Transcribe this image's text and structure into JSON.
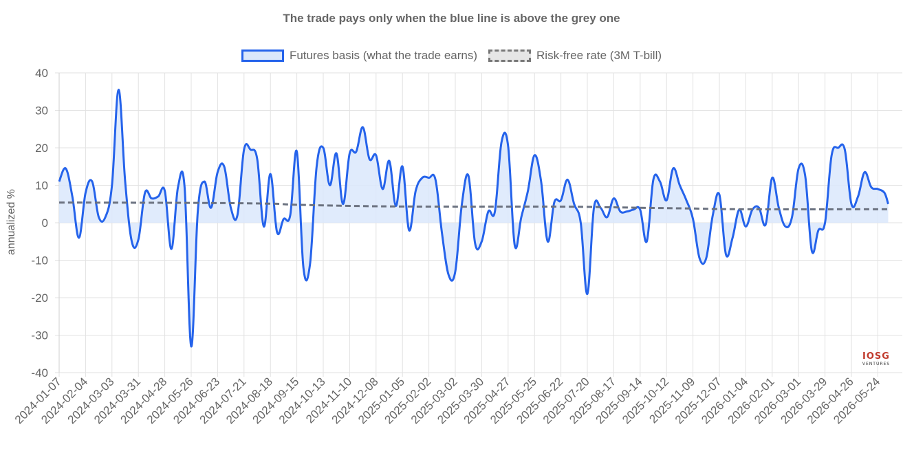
{
  "chart_data": {
    "type": "line",
    "title": "The trade pays only when the blue line is above the grey one",
    "ylabel": "annualized %",
    "xlabel": "",
    "ylim": [
      -40,
      40
    ],
    "yticks": [
      40,
      30,
      20,
      10,
      0,
      -10,
      -20,
      -30,
      -40
    ],
    "grid": true,
    "legend_placement": "top",
    "x_tick_labels": [
      "2024-01-07",
      "2024-02-04",
      "2024-03-03",
      "2024-03-31",
      "2024-04-28",
      "2024-05-26",
      "2024-06-23",
      "2024-07-21",
      "2024-08-18",
      "2024-09-15",
      "2024-10-13",
      "2024-11-10",
      "2024-12-08",
      "2025-01-05",
      "2025-02-02",
      "2025-03-02",
      "2025-03-30",
      "2025-04-27",
      "2025-05-25",
      "2025-06-22",
      "2025-07-20",
      "2025-08-17",
      "2025-09-14",
      "2025-10-12",
      "2025-11-09",
      "2025-12-07",
      "2026-01-04",
      "2026-02-01",
      "2026-03-01",
      "2026-03-29",
      "2026-04-26",
      "2026-05-24"
    ],
    "series": [
      {
        "name": "Futures basis (what the trade earns)",
        "color": "#2563eb",
        "fill": "#dbe7fb",
        "style": "solid",
        "points": [
          [
            "2024-01-07",
            11
          ],
          [
            "2024-01-14",
            14.5
          ],
          [
            "2024-01-21",
            7
          ],
          [
            "2024-01-28",
            -4
          ],
          [
            "2024-02-04",
            8
          ],
          [
            "2024-02-11",
            11
          ],
          [
            "2024-02-18",
            1.5
          ],
          [
            "2024-02-25",
            1.5
          ],
          [
            "2024-03-03",
            10
          ],
          [
            "2024-03-10",
            35.5
          ],
          [
            "2024-03-17",
            11
          ],
          [
            "2024-03-24",
            -5
          ],
          [
            "2024-03-31",
            -4.5
          ],
          [
            "2024-04-07",
            8
          ],
          [
            "2024-04-14",
            6.5
          ],
          [
            "2024-04-21",
            7
          ],
          [
            "2024-04-28",
            8.5
          ],
          [
            "2024-05-05",
            -7
          ],
          [
            "2024-05-12",
            9.5
          ],
          [
            "2024-05-19",
            9.5
          ],
          [
            "2024-05-26",
            -33
          ],
          [
            "2024-06-02",
            3
          ],
          [
            "2024-06-09",
            11
          ],
          [
            "2024-06-16",
            4
          ],
          [
            "2024-06-23",
            13.5
          ],
          [
            "2024-06-30",
            15
          ],
          [
            "2024-07-07",
            4
          ],
          [
            "2024-07-14",
            2
          ],
          [
            "2024-07-21",
            19.5
          ],
          [
            "2024-07-28",
            19.5
          ],
          [
            "2024-08-04",
            17
          ],
          [
            "2024-08-11",
            -1
          ],
          [
            "2024-08-18",
            13
          ],
          [
            "2024-08-25",
            -2.5
          ],
          [
            "2024-09-01",
            1
          ],
          [
            "2024-09-08",
            2
          ],
          [
            "2024-09-15",
            19
          ],
          [
            "2024-09-22",
            -12
          ],
          [
            "2024-09-29",
            -11
          ],
          [
            "2024-10-06",
            15
          ],
          [
            "2024-10-13",
            20
          ],
          [
            "2024-10-20",
            10
          ],
          [
            "2024-10-27",
            18.5
          ],
          [
            "2024-11-03",
            5
          ],
          [
            "2024-11-10",
            18.5
          ],
          [
            "2024-11-17",
            19
          ],
          [
            "2024-11-24",
            25.5
          ],
          [
            "2024-12-01",
            17
          ],
          [
            "2024-12-08",
            18
          ],
          [
            "2024-12-15",
            9
          ],
          [
            "2024-12-22",
            16.5
          ],
          [
            "2024-12-29",
            4.5
          ],
          [
            "2025-01-05",
            15
          ],
          [
            "2025-01-12",
            -2
          ],
          [
            "2025-01-19",
            8.5
          ],
          [
            "2025-01-26",
            12
          ],
          [
            "2025-02-02",
            12
          ],
          [
            "2025-02-09",
            11.5
          ],
          [
            "2025-02-16",
            -3
          ],
          [
            "2025-02-23",
            -14
          ],
          [
            "2025-03-02",
            -13
          ],
          [
            "2025-03-09",
            5
          ],
          [
            "2025-03-16",
            12.5
          ],
          [
            "2025-03-23",
            -5.5
          ],
          [
            "2025-03-30",
            -5
          ],
          [
            "2025-04-06",
            3
          ],
          [
            "2025-04-13",
            3
          ],
          [
            "2025-04-20",
            21.5
          ],
          [
            "2025-04-27",
            20.5
          ],
          [
            "2025-05-04",
            -6
          ],
          [
            "2025-05-11",
            1.5
          ],
          [
            "2025-05-18",
            8.5
          ],
          [
            "2025-05-25",
            18
          ],
          [
            "2025-06-01",
            11
          ],
          [
            "2025-06-08",
            -5
          ],
          [
            "2025-06-15",
            5.5
          ],
          [
            "2025-06-22",
            6
          ],
          [
            "2025-06-29",
            11.5
          ],
          [
            "2025-07-06",
            5
          ],
          [
            "2025-07-13",
            0
          ],
          [
            "2025-07-20",
            -19
          ],
          [
            "2025-07-27",
            4
          ],
          [
            "2025-08-03",
            4
          ],
          [
            "2025-08-10",
            1.5
          ],
          [
            "2025-08-17",
            6.5
          ],
          [
            "2025-08-24",
            3
          ],
          [
            "2025-08-31",
            3
          ],
          [
            "2025-09-07",
            3.5
          ],
          [
            "2025-09-14",
            3.5
          ],
          [
            "2025-09-21",
            -5
          ],
          [
            "2025-09-28",
            11.5
          ],
          [
            "2025-10-05",
            11
          ],
          [
            "2025-10-12",
            6
          ],
          [
            "2025-10-19",
            14.5
          ],
          [
            "2025-10-26",
            10
          ],
          [
            "2025-11-02",
            6
          ],
          [
            "2025-11-09",
            1
          ],
          [
            "2025-11-16",
            -9.5
          ],
          [
            "2025-11-23",
            -9.5
          ],
          [
            "2025-11-30",
            2
          ],
          [
            "2025-12-07",
            7.5
          ],
          [
            "2025-12-14",
            -8.5
          ],
          [
            "2025-12-21",
            -4
          ],
          [
            "2025-12-28",
            3.5
          ],
          [
            "2026-01-04",
            -1
          ],
          [
            "2026-01-11",
            3.5
          ],
          [
            "2026-01-18",
            4
          ],
          [
            "2026-01-25",
            -0.5
          ],
          [
            "2026-02-01",
            12
          ],
          [
            "2026-02-08",
            4
          ],
          [
            "2026-02-15",
            -1
          ],
          [
            "2026-02-22",
            1.5
          ],
          [
            "2026-03-01",
            14.5
          ],
          [
            "2026-03-08",
            12.5
          ],
          [
            "2026-03-15",
            -7.5
          ],
          [
            "2026-03-22",
            -2
          ],
          [
            "2026-03-29",
            0
          ],
          [
            "2026-04-05",
            18
          ],
          [
            "2026-04-12",
            20
          ],
          [
            "2026-04-19",
            19.5
          ],
          [
            "2026-04-26",
            5
          ],
          [
            "2026-05-03",
            7
          ],
          [
            "2026-05-10",
            13.5
          ],
          [
            "2026-05-17",
            9.5
          ],
          [
            "2026-05-24",
            9
          ],
          [
            "2026-05-31",
            8
          ],
          [
            "2026-06-04",
            5
          ]
        ]
      },
      {
        "name": "Risk-free rate (3M T-bill)",
        "color": "#6b7280",
        "style": "dashed",
        "points": [
          [
            "2024-01-07",
            5.4
          ],
          [
            "2024-05-26",
            5.3
          ],
          [
            "2024-08-18",
            5.1
          ],
          [
            "2024-09-15",
            4.8
          ],
          [
            "2024-12-08",
            4.4
          ],
          [
            "2025-03-02",
            4.3
          ],
          [
            "2025-06-22",
            4.3
          ],
          [
            "2025-09-14",
            4.0
          ],
          [
            "2025-11-09",
            3.8
          ],
          [
            "2026-01-04",
            3.6
          ],
          [
            "2026-06-04",
            3.6
          ]
        ]
      }
    ]
  },
  "watermark": {
    "logo": "IOSG",
    "sub": "VENTURES"
  }
}
